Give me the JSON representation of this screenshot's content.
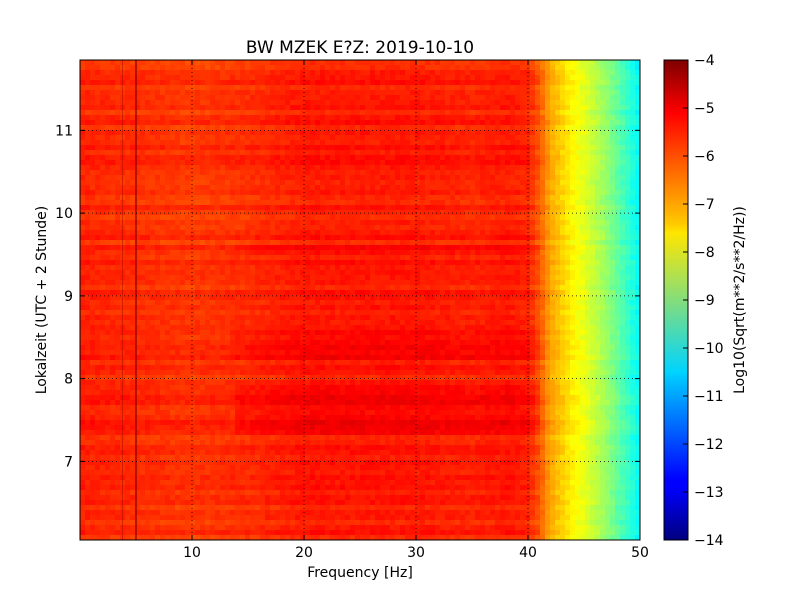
{
  "chart_data": {
    "type": "heatmap",
    "title": "BW MZEK E?Z: 2019-10-10",
    "xlabel": "Frequency [Hz]",
    "ylabel": "Lokalzeit (UTC + 2 Stunde)",
    "xlim": [
      0,
      50
    ],
    "ylim": [
      11.85,
      6.05
    ],
    "xticks": [
      10,
      20,
      30,
      40,
      50
    ],
    "xticklabels": [
      "10",
      "20",
      "30",
      "40",
      "50"
    ],
    "yticks": [
      7,
      8,
      9,
      10,
      11
    ],
    "yticklabels": [
      "7",
      "8",
      "9",
      "10",
      "11"
    ],
    "grid": true,
    "colormap": "jet",
    "colorbar": {
      "label": "Log10(Sqrt(m**2/s**2/Hz))",
      "range": [
        -14,
        -4
      ],
      "ticks": [
        -4,
        -5,
        -6,
        -7,
        -8,
        -9,
        -10,
        -11,
        -12,
        -13,
        -14
      ],
      "ticklabels": [
        "−4",
        "−5",
        "−6",
        "−7",
        "−8",
        "−9",
        "−10",
        "−11",
        "−12",
        "−13",
        "−14"
      ]
    },
    "spectrum_profile": {
      "frequency_hz": [
        0,
        5,
        10,
        15,
        20,
        25,
        30,
        35,
        38,
        40,
        41,
        42,
        43,
        44,
        45,
        46,
        47,
        48,
        49,
        50
      ],
      "log10_amplitude": [
        -5.6,
        -5.7,
        -5.8,
        -5.7,
        -5.5,
        -5.5,
        -5.5,
        -5.6,
        -5.5,
        -5.6,
        -6.1,
        -6.9,
        -7.3,
        -7.7,
        -8.0,
        -8.4,
        -8.8,
        -9.3,
        -9.8,
        -10.3
      ]
    },
    "stronger_time_bands": [
      {
        "start": 7.3,
        "end": 7.95,
        "delta": 0.3
      },
      {
        "start": 8.2,
        "end": 8.6,
        "delta": 0.25
      },
      {
        "start": 9.5,
        "end": 9.6,
        "delta": 0.2
      },
      {
        "start": 10.68,
        "end": 10.7,
        "delta": 0.45
      },
      {
        "start": 10.02,
        "end": 10.06,
        "delta": 0.6
      }
    ],
    "vertical_lines_hz": [
      5.0,
      3.8
    ]
  }
}
